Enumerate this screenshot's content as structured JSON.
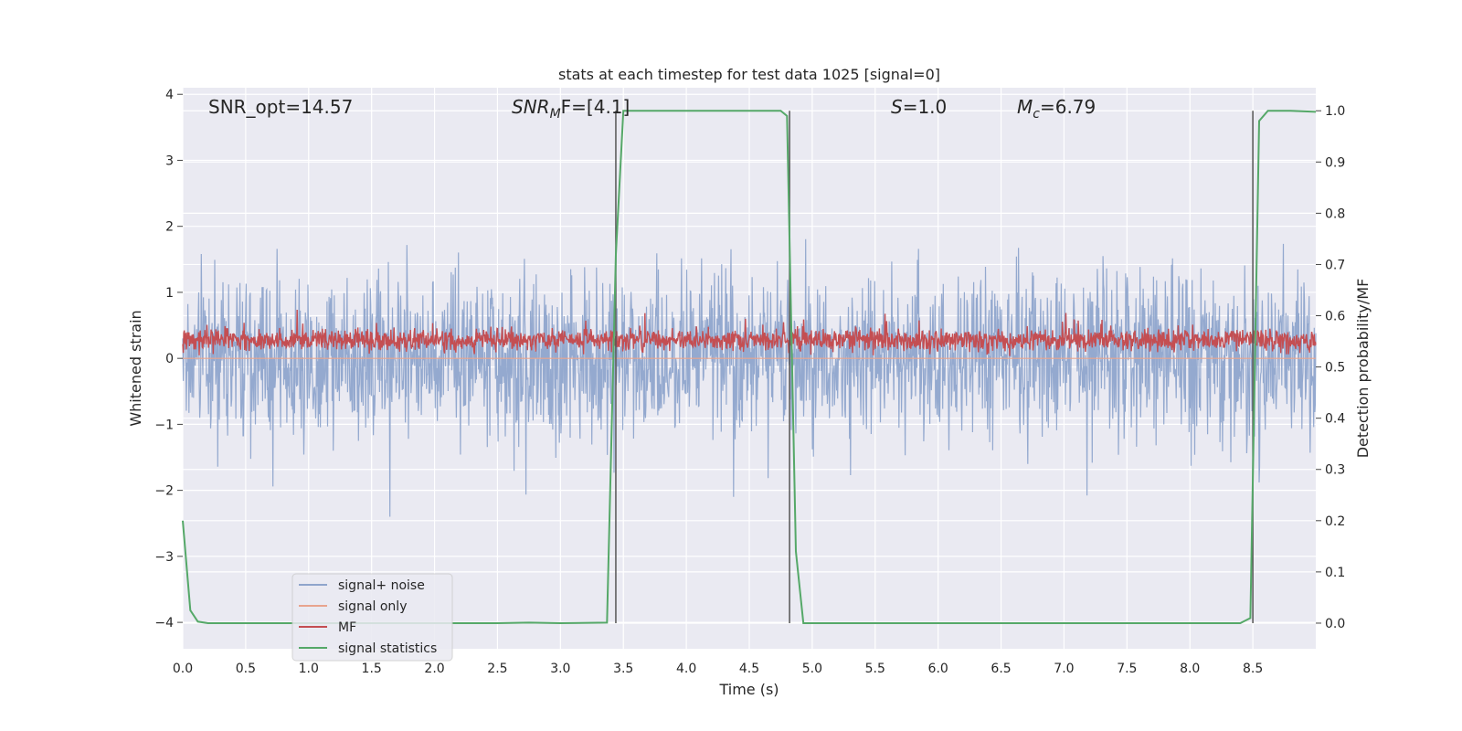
{
  "chart_data": {
    "type": "line",
    "title": "stats at each timestep for test data 1025 [signal=0]",
    "xlabel": "Time (s)",
    "ylabel_left": "Whitened strain",
    "ylabel_right": "Detection probability/MF",
    "xlim": [
      0.0,
      9.0
    ],
    "ylim_left": [
      -4.4,
      4.1
    ],
    "ylim_right": [
      -0.05,
      1.045
    ],
    "x_ticks": [
      "0.0",
      "0.5",
      "1.0",
      "1.5",
      "2.0",
      "2.5",
      "3.0",
      "3.5",
      "4.0",
      "4.5",
      "5.0",
      "5.5",
      "6.0",
      "6.5",
      "7.0",
      "7.5",
      "8.0",
      "8.5"
    ],
    "y_ticks_left": [
      "4",
      "3",
      "2",
      "1",
      "0",
      "−1",
      "−2",
      "−3",
      "−4"
    ],
    "y_ticks_right": [
      "1.0",
      "0.9",
      "0.8",
      "0.7",
      "0.6",
      "0.5",
      "0.4",
      "0.3",
      "0.2",
      "0.1",
      "0.0"
    ],
    "grid": true,
    "legend_position": "lower-left",
    "annotations": {
      "snr_opt": "SNR_opt=14.57",
      "snr_mf_main": "SNR",
      "snr_mf_sub": "M",
      "snr_mf_rest": "F=[4.1]",
      "s_main": "S",
      "s_rest": "=1.0",
      "mc_main": "M",
      "mc_sub": "c",
      "mc_rest": "=6.79"
    },
    "series": [
      {
        "name": "signal+ noise",
        "color": "#8fa5cc",
        "axis": "left",
        "style": "dense noise band, approx range -3.4 to 3.4 with center band -1.6 to 1.4"
      },
      {
        "name": "signal only",
        "color": "#e8a48e",
        "axis": "left",
        "values_note": "flat at 0"
      },
      {
        "name": "MF",
        "color": "#c44e52",
        "axis": "left",
        "style": "noise band approx 0.0 to 0.6 with peaks to 1.0"
      },
      {
        "name": "signal statistics",
        "color": "#55a868",
        "axis": "right",
        "x": [
          0.0,
          0.06,
          0.12,
          0.2,
          0.5,
          1.0,
          2.0,
          2.5,
          2.75,
          3.0,
          3.37,
          3.44,
          3.5,
          4.0,
          4.5,
          4.75,
          4.8,
          4.87,
          4.93,
          5.0,
          6.0,
          7.0,
          8.0,
          8.4,
          8.48,
          8.55,
          8.62,
          8.7,
          8.8,
          9.0
        ],
        "y": [
          0.2,
          0.025,
          0.003,
          0.0,
          0.0,
          0.0,
          0.0,
          0.0,
          0.001,
          0.0,
          0.001,
          0.72,
          1.0,
          1.0,
          1.0,
          1.0,
          0.99,
          0.14,
          0.0,
          0.0,
          0.0,
          0.0,
          0.0,
          0.0,
          0.01,
          0.98,
          1.0,
          1.0,
          1.0,
          0.998
        ]
      }
    ],
    "vertical_lines_x": [
      3.44,
      4.82,
      8.5
    ],
    "colors": {
      "plot_bg": "#eaeaf2",
      "grid": "#ffffff",
      "vline": "#555555"
    }
  }
}
